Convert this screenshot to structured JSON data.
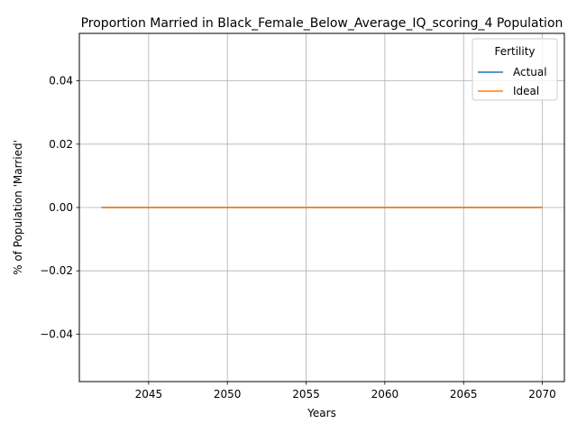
{
  "chart_data": {
    "type": "line",
    "title": "Proportion Married in Black_Female_Below_Average_IQ_scoring_4 Population",
    "xlabel": "Years",
    "ylabel": "% of Population 'Married'",
    "xlim": [
      2040.6,
      2071.4
    ],
    "ylim": [
      -0.055,
      0.055
    ],
    "x_ticks": [
      2045,
      2050,
      2055,
      2060,
      2065,
      2070
    ],
    "y_ticks": [
      -0.04,
      -0.02,
      0.0,
      0.02,
      0.04
    ],
    "x_tick_labels": [
      "2045",
      "2050",
      "2055",
      "2060",
      "2065",
      "2070"
    ],
    "y_tick_labels": [
      "−0.04",
      "−0.02",
      "0.00",
      "0.02",
      "0.04"
    ],
    "grid": true,
    "legend": {
      "title": "Fertility",
      "placement": "top-right"
    },
    "x": [
      2042,
      2043,
      2044,
      2045,
      2046,
      2047,
      2048,
      2049,
      2050,
      2051,
      2052,
      2053,
      2054,
      2055,
      2056,
      2057,
      2058,
      2059,
      2060,
      2061,
      2062,
      2063,
      2064,
      2065,
      2066,
      2067,
      2068,
      2069,
      2070
    ],
    "series": [
      {
        "name": "Actual",
        "color": "#1f77b4",
        "values": [
          0,
          0,
          0,
          0,
          0,
          0,
          0,
          0,
          0,
          0,
          0,
          0,
          0,
          0,
          0,
          0,
          0,
          0,
          0,
          0,
          0,
          0,
          0,
          0,
          0,
          0,
          0,
          0,
          0
        ]
      },
      {
        "name": "Ideal",
        "color": "#ff7f0e",
        "values": [
          0,
          0,
          0,
          0,
          0,
          0,
          0,
          0,
          0,
          0,
          0,
          0,
          0,
          0,
          0,
          0,
          0,
          0,
          0,
          0,
          0,
          0,
          0,
          0,
          0,
          0,
          0,
          0,
          0
        ]
      }
    ]
  }
}
